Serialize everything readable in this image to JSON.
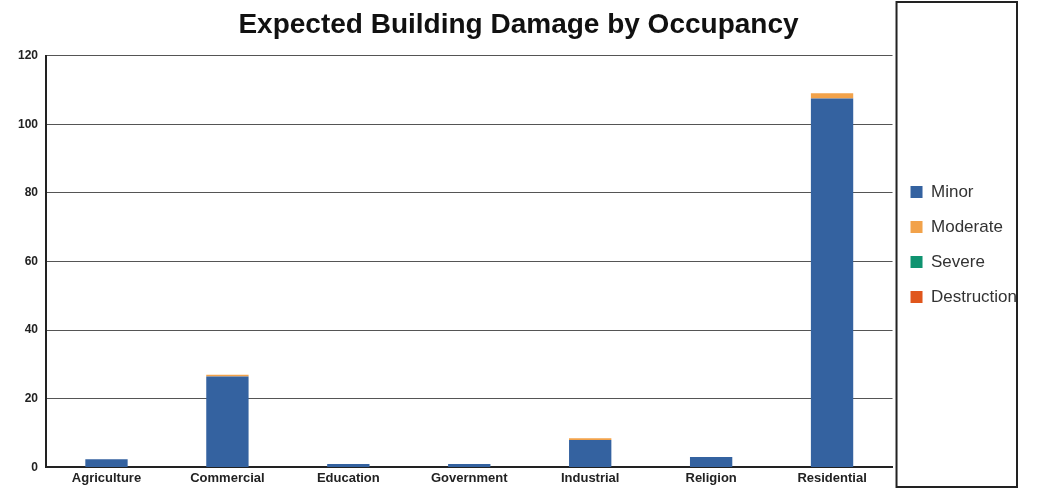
{
  "chart_data": {
    "type": "bar",
    "title": "Expected Building Damage by Occupancy",
    "categories": [
      "Agriculture",
      "Commercial",
      "Education",
      "Government",
      "Industrial",
      "Religion",
      "Residential"
    ],
    "series": [
      {
        "name": "Minor",
        "color": "#3462a0",
        "values": [
          2.4,
          26.5,
          1,
          1,
          8,
          3,
          107.5
        ]
      },
      {
        "name": "Moderate",
        "color": "#f2a24a",
        "values": [
          0,
          0.5,
          0,
          0,
          0.5,
          0,
          1.5
        ]
      },
      {
        "name": "Severe",
        "color": "#0f9370",
        "values": [
          0,
          0,
          0,
          0,
          0,
          0,
          0
        ]
      },
      {
        "name": "Destruction",
        "color": "#e0561c",
        "values": [
          0,
          0,
          0,
          0,
          0,
          0,
          0
        ]
      }
    ],
    "stacked": true,
    "ylim": [
      0,
      120
    ],
    "yticks": [
      0,
      20,
      40,
      60,
      80,
      100,
      120
    ],
    "grid": "y",
    "legend": "right"
  }
}
